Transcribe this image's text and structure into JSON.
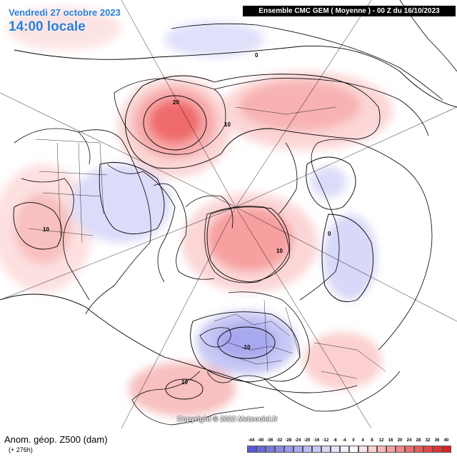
{
  "header": {
    "date": "Vendredi 27 octobre 2023",
    "time": "14:00 locale",
    "model": "Ensemble CMC GEM ( Moyenne ) - 00 Z du 16/10/2023"
  },
  "watermark": "Copyright © 2023 Meteociel.fr",
  "footer": {
    "title": "Anom. géop. Z500 (dam)",
    "lead": "(+ 276h)"
  },
  "contour_labels": [
    "20",
    "10",
    "0",
    "10",
    "10",
    "0",
    "-10",
    "10"
  ],
  "legend": {
    "values": [
      "-44",
      "-40",
      "-36",
      "-32",
      "-28",
      "-24",
      "-20",
      "-16",
      "-12",
      "-8",
      "-4",
      "0",
      "4",
      "8",
      "12",
      "16",
      "20",
      "24",
      "28",
      "32",
      "36",
      "40"
    ],
    "colors": [
      "#5a5ad6",
      "#6a6adc",
      "#7a7ae2",
      "#8a8ae6",
      "#9a9aea",
      "#aaaaee",
      "#babaf2",
      "#c8c8f5",
      "#d6d6f8",
      "#e4e4fb",
      "#f0f0fd",
      "#ffffff",
      "#fde4e4",
      "#fbd0d0",
      "#f8b8b8",
      "#f5a0a0",
      "#f28888",
      "#ee7070",
      "#ea5a5a",
      "#e64646",
      "#e03434",
      "#d82424"
    ]
  },
  "colors": {
    "positive_anomaly": "#f06060",
    "negative_anomaly": "#8080e0",
    "title_text": "#2a7fd8"
  }
}
